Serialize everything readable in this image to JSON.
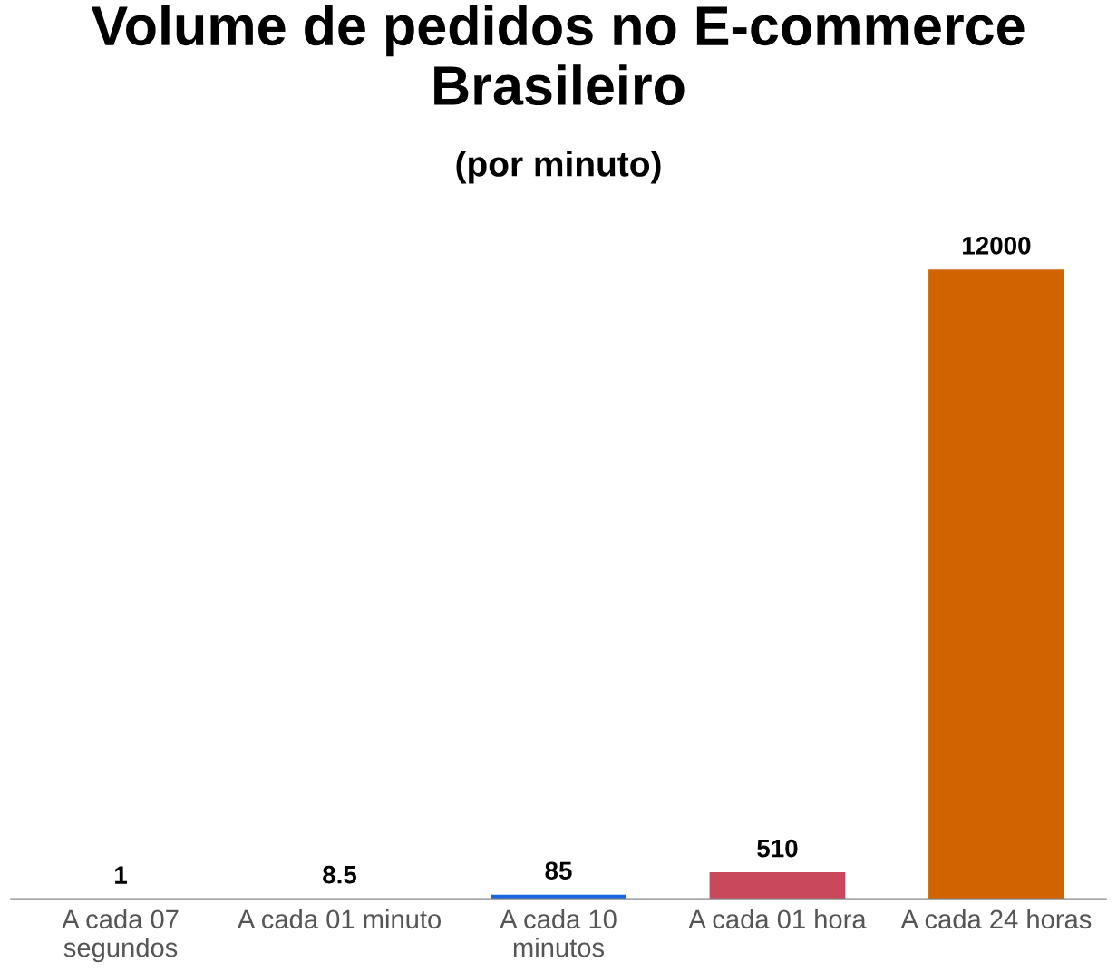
{
  "chart_data": {
    "type": "bar",
    "title": "Volume de pedidos no E-commerce Brasileiro",
    "subtitle": "(por minuto)",
    "categories": [
      "A cada 07\nsegundos",
      "A cada 01 minuto",
      "A cada 10\nminutos",
      "A cada 01 hora",
      "A cada 24 horas"
    ],
    "values": [
      1,
      8.5,
      85,
      510,
      12000
    ],
    "colors": [
      "#7f7f7f",
      "#7f7f7f",
      "#1a66e0",
      "#c9485b",
      "#d26400"
    ],
    "data_labels": true,
    "grid": false,
    "legend": false
  }
}
